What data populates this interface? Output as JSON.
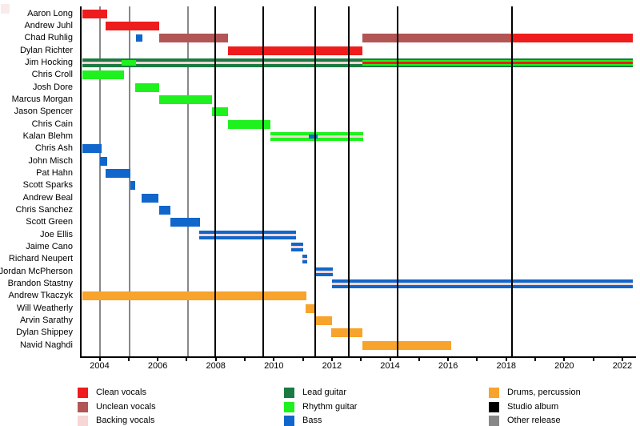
{
  "colors": {
    "clean_vocals": "#ee1c1c",
    "unclean_vocals": "#b25555",
    "backing_vocals": "#f7d6d6",
    "lead_guitar": "#1b7a41",
    "rhythm_guitar": "#1ef11e",
    "bass": "#1066cb",
    "drums_percussion": "#f7a32c",
    "studio_album": "#000000",
    "other_release": "#888888"
  },
  "chart_data": {
    "type": "bar",
    "subtype": "band-member-timeline",
    "xlim": [
      2003.38,
      2022.47
    ],
    "x_tick_years": [
      2004,
      2006,
      2008,
      2010,
      2012,
      2014,
      2016,
      2018,
      2020,
      2022
    ],
    "x_tick_labels": [
      "2004",
      "2006",
      "2008",
      "2010",
      "2012",
      "2014",
      "2016",
      "2018",
      "2020",
      "2022"
    ],
    "x_minor_tick_years": [
      2004,
      2005,
      2006,
      2007,
      2008,
      2009,
      2010,
      2011,
      2012,
      2013,
      2014,
      2015,
      2016,
      2017,
      2018,
      2019,
      2020,
      2021,
      2022
    ],
    "grid": "vertical-event-lines",
    "events": {
      "other_release_years": [
        2004.0,
        2005.02,
        2007.03
      ],
      "studio_album_years": [
        2007.98,
        2009.62,
        2011.42,
        2012.57,
        2014.27,
        2018.19
      ]
    },
    "members": [
      {
        "name": "Aaron Long",
        "bars": [
          {
            "roles": [
              "clean_vocals"
            ],
            "start": 2003.4,
            "end": 2004.26
          }
        ]
      },
      {
        "name": "Andrew Juhl",
        "bars": [
          {
            "roles": [
              "clean_vocals"
            ],
            "start": 2004.2,
            "end": 2006.04
          }
        ]
      },
      {
        "name": "Chad Ruhlig",
        "bars": [
          {
            "roles": [
              "bass"
            ],
            "start": 2005.25,
            "end": 2005.48,
            "h": 9
          },
          {
            "roles": [
              "unclean_vocals"
            ],
            "start": 2006.04,
            "end": 2008.41
          },
          {
            "roles": [
              "unclean_vocals"
            ],
            "start": 2013.04,
            "end": 2018.14
          },
          {
            "roles": [
              "clean_vocals"
            ],
            "start": 2018.14,
            "end": 2022.35
          }
        ]
      },
      {
        "name": "Dylan Richter",
        "bars": [
          {
            "roles": [
              "clean_vocals"
            ],
            "start": 2008.41,
            "end": 2013.05
          }
        ]
      },
      {
        "name": "Jim Hocking",
        "bars": [
          {
            "roles": [
              "lead_guitar",
              "backing_vocals"
            ],
            "start": 2003.4,
            "end": 2013.05
          },
          {
            "roles": [
              "rhythm_guitar"
            ],
            "start": 2004.76,
            "end": 2005.25,
            "h": 7
          },
          {
            "roles": [
              "lead_guitar",
              "rhythm_guitar",
              "clean_vocals"
            ],
            "start": 2013.05,
            "end": 2022.35
          }
        ]
      },
      {
        "name": "Chris Croll",
        "bars": [
          {
            "roles": [
              "rhythm_guitar"
            ],
            "start": 2003.4,
            "end": 2004.84
          }
        ]
      },
      {
        "name": "Josh Dore",
        "bars": [
          {
            "roles": [
              "rhythm_guitar"
            ],
            "start": 2005.22,
            "end": 2006.04
          }
        ]
      },
      {
        "name": "Marcus Morgan",
        "bars": [
          {
            "roles": [
              "rhythm_guitar"
            ],
            "start": 2006.04,
            "end": 2007.86
          }
        ]
      },
      {
        "name": "Jason Spencer",
        "bars": [
          {
            "roles": [
              "rhythm_guitar"
            ],
            "start": 2007.86,
            "end": 2008.41
          }
        ]
      },
      {
        "name": "Chris Cain",
        "bars": [
          {
            "roles": [
              "rhythm_guitar"
            ],
            "start": 2008.41,
            "end": 2009.89
          }
        ]
      },
      {
        "name": "Kalan Blehm",
        "bars": [
          {
            "roles": [
              "rhythm_guitar",
              "backing_vocals"
            ],
            "start": 2009.89,
            "end": 2013.08
          },
          {
            "roles": [
              "bass"
            ],
            "start": 2011.2,
            "end": 2011.5,
            "h": 5
          }
        ]
      },
      {
        "name": "Chris Ash",
        "bars": [
          {
            "roles": [
              "bass"
            ],
            "start": 2003.4,
            "end": 2004.08
          }
        ]
      },
      {
        "name": "John Misch",
        "bars": [
          {
            "roles": [
              "bass"
            ],
            "start": 2004.0,
            "end": 2004.25
          }
        ]
      },
      {
        "name": "Pat Hahn",
        "bars": [
          {
            "roles": [
              "bass"
            ],
            "start": 2004.2,
            "end": 2005.06
          }
        ]
      },
      {
        "name": "Scott Sparks",
        "bars": [
          {
            "roles": [
              "bass"
            ],
            "start": 2005.06,
            "end": 2005.22
          }
        ]
      },
      {
        "name": "Andrew Beal",
        "bars": [
          {
            "roles": [
              "bass"
            ],
            "start": 2005.44,
            "end": 2006.02
          }
        ]
      },
      {
        "name": "Chris Sanchez",
        "bars": [
          {
            "roles": [
              "bass"
            ],
            "start": 2006.04,
            "end": 2006.43
          }
        ]
      },
      {
        "name": "Scott Green",
        "bars": [
          {
            "roles": [
              "bass"
            ],
            "start": 2006.43,
            "end": 2007.45
          }
        ]
      },
      {
        "name": "Joe Ellis",
        "bars": [
          {
            "roles": [
              "bass",
              "backing_vocals"
            ],
            "start": 2007.42,
            "end": 2010.75
          }
        ]
      },
      {
        "name": "Jaime Cano",
        "bars": [
          {
            "roles": [
              "bass",
              "backing_vocals"
            ],
            "start": 2010.6,
            "end": 2011.02
          }
        ]
      },
      {
        "name": "Richard Neupert",
        "bars": [
          {
            "roles": [
              "bass",
              "backing_vocals"
            ],
            "start": 2010.99,
            "end": 2011.16
          }
        ]
      },
      {
        "name": "Jordan McPherson",
        "bars": [
          {
            "roles": [
              "bass",
              "backing_vocals"
            ],
            "start": 2011.43,
            "end": 2012.03
          }
        ]
      },
      {
        "name": "Brandon Stastny",
        "bars": [
          {
            "roles": [
              "bass",
              "backing_vocals"
            ],
            "start": 2012.0,
            "end": 2022.35
          }
        ]
      },
      {
        "name": "Andrew Tkaczyk",
        "bars": [
          {
            "roles": [
              "drums_percussion"
            ],
            "start": 2003.4,
            "end": 2011.13
          }
        ]
      },
      {
        "name": "Will Weatherly",
        "bars": [
          {
            "roles": [
              "drums_percussion"
            ],
            "start": 2011.1,
            "end": 2011.43
          }
        ]
      },
      {
        "name": "Arvin Sarathy",
        "bars": [
          {
            "roles": [
              "drums_percussion"
            ],
            "start": 2011.43,
            "end": 2012.0
          }
        ]
      },
      {
        "name": "Dylan Shippey",
        "bars": [
          {
            "roles": [
              "drums_percussion"
            ],
            "start": 2011.98,
            "end": 2013.06
          }
        ]
      },
      {
        "name": "Navid Naghdi",
        "bars": [
          {
            "roles": [
              "drums_percussion"
            ],
            "start": 2013.04,
            "end": 2016.1
          }
        ]
      }
    ]
  },
  "legend": {
    "columns": [
      {
        "items": [
          {
            "label": "Clean vocals",
            "role": "clean_vocals"
          },
          {
            "label": "Unclean vocals",
            "role": "unclean_vocals"
          },
          {
            "label": "Backing vocals",
            "role": "backing_vocals"
          }
        ]
      },
      {
        "items": [
          {
            "label": "Lead guitar",
            "role": "lead_guitar"
          },
          {
            "label": "Rhythm guitar",
            "role": "rhythm_guitar"
          },
          {
            "label": "Bass",
            "role": "bass"
          }
        ]
      },
      {
        "items": [
          {
            "label": "Drums, percussion",
            "role": "drums_percussion"
          },
          {
            "label": "Studio album",
            "role": "studio_album"
          },
          {
            "label": "Other release",
            "role": "other_release"
          }
        ]
      }
    ]
  }
}
